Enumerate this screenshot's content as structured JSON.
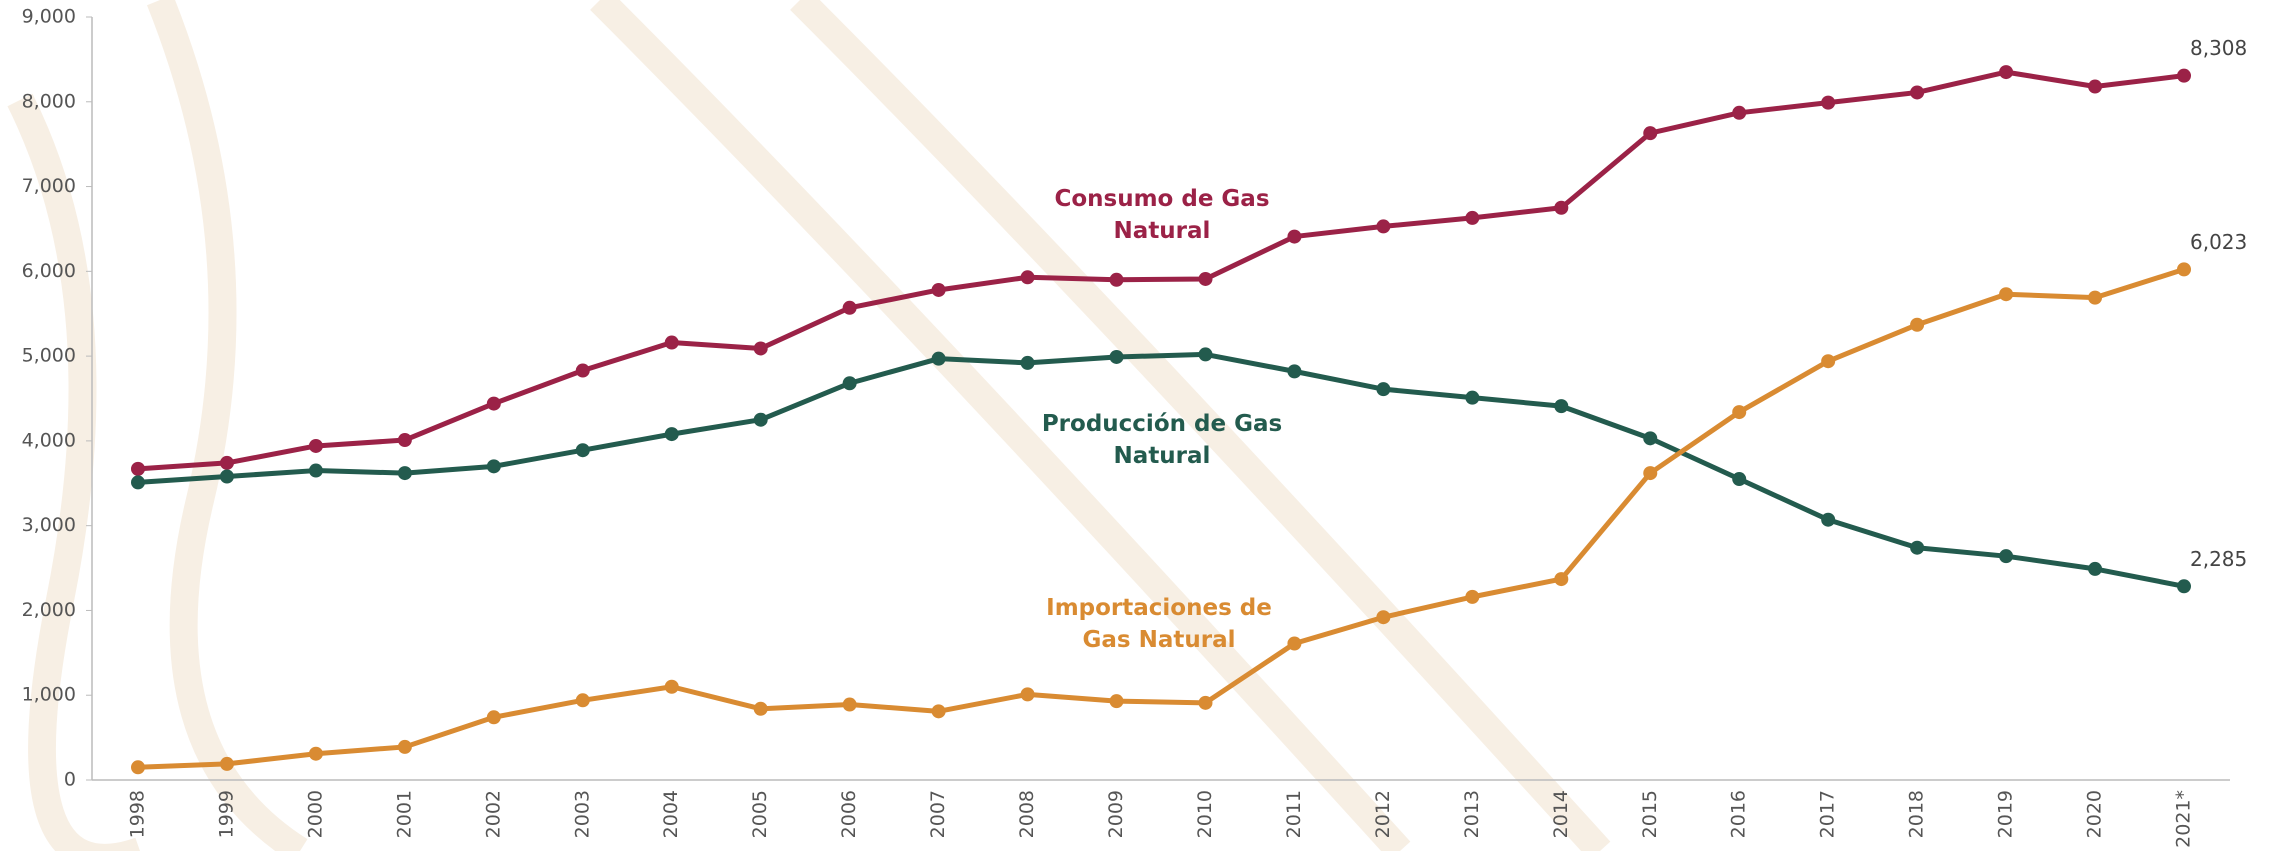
{
  "chart_data": {
    "type": "line",
    "categories": [
      "1998",
      "1999",
      "2000",
      "2001",
      "2002",
      "2003",
      "2004",
      "2005",
      "2006",
      "2007",
      "2008",
      "2009",
      "2010",
      "2011",
      "2012",
      "2013",
      "2014",
      "2015",
      "2016",
      "2017",
      "2018",
      "2019",
      "2020",
      "2021*"
    ],
    "series": [
      {
        "name": "Consumo de Gas Natural",
        "color": "#9b2247",
        "values": [
          3670,
          3740,
          3940,
          4010,
          4440,
          4830,
          5160,
          5090,
          5570,
          5780,
          5930,
          5900,
          5910,
          6410,
          6530,
          6630,
          6750,
          7630,
          7870,
          7990,
          8110,
          8350,
          8180,
          8308
        ],
        "value_labels": [
          null,
          null,
          null,
          null,
          null,
          null,
          null,
          null,
          null,
          null,
          null,
          null,
          null,
          null,
          null,
          null,
          null,
          null,
          null,
          null,
          null,
          null,
          null,
          "8,308"
        ]
      },
      {
        "name": "Producción de Gas Natural",
        "color": "#235b4e",
        "values": [
          3510,
          3580,
          3650,
          3620,
          3700,
          3890,
          4080,
          4250,
          4680,
          4970,
          4920,
          4990,
          5020,
          4820,
          4610,
          4510,
          4410,
          4030,
          3550,
          3070,
          2740,
          2640,
          2490,
          2285
        ],
        "value_labels": [
          null,
          null,
          null,
          null,
          null,
          null,
          null,
          null,
          null,
          null,
          null,
          null,
          null,
          null,
          null,
          null,
          null,
          null,
          null,
          null,
          null,
          null,
          null,
          "2,285"
        ]
      },
      {
        "name": "Importaciones de Gas Natural",
        "color": "#d98b32",
        "values": [
          150,
          190,
          310,
          390,
          740,
          940,
          1100,
          840,
          890,
          810,
          1010,
          930,
          910,
          1610,
          1920,
          2160,
          2370,
          3620,
          4340,
          4940,
          5370,
          5730,
          5690,
          6023
        ],
        "value_labels": [
          null,
          null,
          null,
          null,
          null,
          null,
          null,
          null,
          null,
          null,
          null,
          null,
          null,
          null,
          null,
          null,
          null,
          null,
          null,
          null,
          null,
          null,
          null,
          "6,023"
        ]
      }
    ],
    "ylim": [
      0,
      9000
    ],
    "yticks": [
      0,
      {
        "value": 1000,
        "label": "1,000"
      },
      {
        "value": 2000,
        "label": "2,000"
      },
      {
        "value": 3000,
        "label": "3,000"
      },
      {
        "value": 4000,
        "label": "4,000"
      },
      {
        "value": 5000,
        "label": "5,000"
      },
      {
        "value": 6000,
        "label": "6,000"
      },
      {
        "value": 7000,
        "label": "7,000"
      },
      {
        "value": 8000,
        "label": "8,000"
      },
      {
        "value": 9000,
        "label": "9,000"
      }
    ],
    "grid": false
  }
}
